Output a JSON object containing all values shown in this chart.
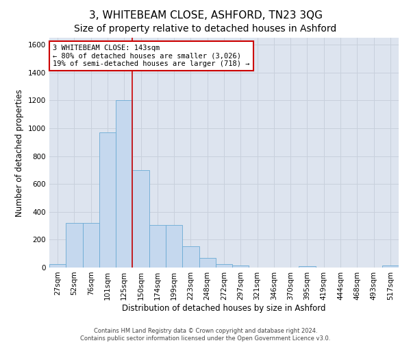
{
  "title": "3, WHITEBEAM CLOSE, ASHFORD, TN23 3QG",
  "subtitle": "Size of property relative to detached houses in Ashford",
  "xlabel": "Distribution of detached houses by size in Ashford",
  "ylabel": "Number of detached properties",
  "categories": [
    "27sqm",
    "52sqm",
    "76sqm",
    "101sqm",
    "125sqm",
    "150sqm",
    "174sqm",
    "199sqm",
    "223sqm",
    "248sqm",
    "272sqm",
    "297sqm",
    "321sqm",
    "346sqm",
    "370sqm",
    "395sqm",
    "419sqm",
    "444sqm",
    "468sqm",
    "493sqm",
    "517sqm"
  ],
  "values": [
    25,
    320,
    320,
    970,
    1200,
    700,
    305,
    305,
    155,
    70,
    25,
    15,
    0,
    0,
    0,
    12,
    0,
    0,
    0,
    0,
    15
  ],
  "bar_color": "#c5d8ee",
  "bar_edgecolor": "#6aaad4",
  "vline_color": "#cc0000",
  "annotation_text": "3 WHITEBEAM CLOSE: 143sqm\n← 80% of detached houses are smaller (3,026)\n19% of semi-detached houses are larger (718) →",
  "annotation_box_color": "#ffffff",
  "annotation_box_edgecolor": "#cc0000",
  "ylim": [
    0,
    1650
  ],
  "yticks": [
    0,
    200,
    400,
    600,
    800,
    1000,
    1200,
    1400,
    1600
  ],
  "grid_color": "#c8d0dc",
  "background_color": "#dde4ef",
  "footer": "Contains HM Land Registry data © Crown copyright and database right 2024.\nContains public sector information licensed under the Open Government Licence v3.0.",
  "title_fontsize": 11,
  "axis_label_fontsize": 8.5,
  "tick_fontsize": 7.5,
  "annotation_fontsize": 7.5,
  "footer_fontsize": 6
}
